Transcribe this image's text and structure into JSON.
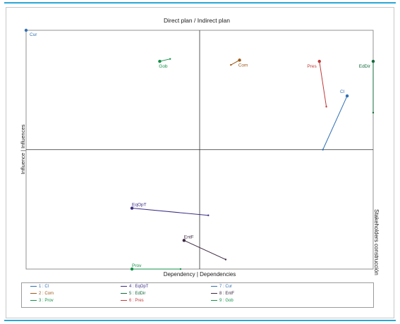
{
  "chart_data": {
    "type": "scatter",
    "title": "Direct plan / Indirect plan",
    "xlabel": "Dependency | Dependencies",
    "ylabel": "Influence | Influences",
    "side_label": "Stakeholders construcción",
    "xlim": [
      0,
      100
    ],
    "ylim": [
      0,
      100
    ],
    "grid": false,
    "legend_position": "bottom",
    "actors": [
      {
        "id": "1",
        "name": "Cl",
        "color": "#2f6fb5",
        "direct": [
          92.5,
          72.5
        ],
        "indirect": [
          85.5,
          50.0
        ]
      },
      {
        "id": "2",
        "name": "Com",
        "color": "#9c5a1c",
        "direct": [
          61.5,
          87.5
        ],
        "indirect": [
          59.0,
          85.5
        ]
      },
      {
        "id": "3",
        "name": "Prov",
        "color": "#139147",
        "direct": [
          30.5,
          0.0
        ],
        "indirect": [
          44.5,
          0.0
        ]
      },
      {
        "id": "4",
        "name": "EqOpT",
        "color": "#3b2f86",
        "direct": [
          30.5,
          25.5
        ],
        "indirect": [
          52.5,
          22.5
        ]
      },
      {
        "id": "5",
        "name": "EdDir",
        "color": "#136b3c",
        "direct": [
          100.0,
          87.0
        ],
        "indirect": [
          100.0,
          65.5
        ]
      },
      {
        "id": "6",
        "name": "Pres",
        "color": "#c0393b",
        "direct": [
          84.5,
          87.0
        ],
        "indirect": [
          86.5,
          68.0
        ]
      },
      {
        "id": "7",
        "name": "Cur",
        "color": "#3570b0",
        "direct": [
          0.0,
          100.0
        ],
        "indirect": [
          0.0,
          100.0
        ]
      },
      {
        "id": "8",
        "name": "EntF",
        "color": "#3b2840",
        "direct": [
          45.5,
          12.0
        ],
        "indirect": [
          57.5,
          4.0
        ]
      },
      {
        "id": "9",
        "name": "Gob",
        "color": "#139147",
        "direct": [
          38.5,
          87.0
        ],
        "indirect": [
          41.5,
          88.0
        ]
      }
    ]
  },
  "legend": {
    "items": [
      {
        "text": "1 : Cl",
        "color": "#2f6fb5"
      },
      {
        "text": "4 : EqOpT",
        "color": "#3b2f86"
      },
      {
        "text": "7 : Cur",
        "color": "#3570b0"
      },
      {
        "text": "2 : Com",
        "color": "#9c5a1c"
      },
      {
        "text": "5 : EdDir",
        "color": "#136b3c"
      },
      {
        "text": "8 : EntF",
        "color": "#3b2840"
      },
      {
        "text": "3 : Prov",
        "color": "#139147"
      },
      {
        "text": "6 : Pres",
        "color": "#c0393b"
      },
      {
        "text": "9 : Gob",
        "color": "#139147"
      }
    ]
  }
}
